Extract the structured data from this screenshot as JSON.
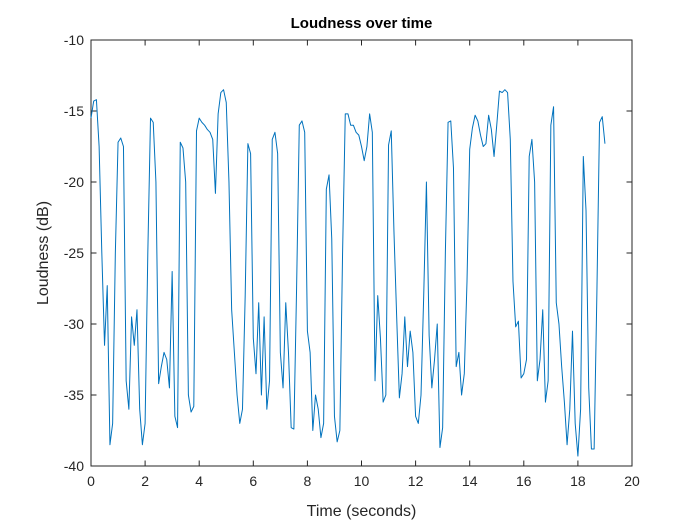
{
  "chart_data": {
    "type": "line",
    "title": "Loudness over time",
    "xlabel": "Time (seconds)",
    "ylabel": "Loudness (dB)",
    "xlim": [
      0,
      20
    ],
    "ylim": [
      -40,
      -10
    ],
    "xticks": [
      0,
      2,
      4,
      6,
      8,
      10,
      12,
      14,
      16,
      18,
      20
    ],
    "yticks": [
      -40,
      -35,
      -30,
      -25,
      -20,
      -15,
      -10
    ],
    "grid": false,
    "x": [
      0,
      0.1,
      0.2,
      0.3,
      0.4,
      0.5,
      0.6,
      0.7,
      0.8,
      0.9,
      1,
      1.1,
      1.2,
      1.3,
      1.4,
      1.5,
      1.6,
      1.7,
      1.8,
      1.9,
      2,
      2.1,
      2.2,
      2.3,
      2.4,
      2.5,
      2.6,
      2.7,
      2.8,
      2.9,
      3,
      3.1,
      3.2,
      3.3,
      3.4,
      3.5,
      3.6,
      3.7,
      3.8,
      3.9,
      4,
      4.1,
      4.2,
      4.3,
      4.4,
      4.5,
      4.6,
      4.7,
      4.8,
      4.9,
      5,
      5.1,
      5.2,
      5.3,
      5.4,
      5.5,
      5.6,
      5.7,
      5.8,
      5.9,
      6,
      6.1,
      6.2,
      6.3,
      6.4,
      6.5,
      6.6,
      6.7,
      6.8,
      6.9,
      7,
      7.1,
      7.2,
      7.3,
      7.4,
      7.5,
      7.6,
      7.7,
      7.8,
      7.9,
      8,
      8.1,
      8.2,
      8.3,
      8.4,
      8.5,
      8.6,
      8.7,
      8.8,
      8.9,
      9,
      9.1,
      9.2,
      9.3,
      9.4,
      9.5,
      9.6,
      9.7,
      9.8,
      9.9,
      10,
      10.1,
      10.2,
      10.3,
      10.4,
      10.5,
      10.6,
      10.7,
      10.8,
      10.9,
      11,
      11.1,
      11.2,
      11.3,
      11.4,
      11.5,
      11.6,
      11.7,
      11.8,
      11.9,
      12,
      12.1,
      12.2,
      12.3,
      12.4,
      12.5,
      12.6,
      12.7,
      12.8,
      12.9,
      13,
      13.1,
      13.2,
      13.3,
      13.4,
      13.5,
      13.6,
      13.7,
      13.8,
      13.9,
      14,
      14.1,
      14.2,
      14.3,
      14.4,
      14.5,
      14.6,
      14.7,
      14.8,
      14.9,
      15,
      15.1,
      15.2,
      15.3,
      15.4,
      15.5,
      15.6,
      15.7,
      15.8,
      15.9,
      16,
      16.1,
      16.2,
      16.3,
      16.4,
      16.5,
      16.6,
      16.7,
      16.8,
      16.9,
      17,
      17.1,
      17.2,
      17.3,
      17.4,
      17.5,
      17.6,
      17.7,
      17.8,
      17.9,
      18,
      18.1,
      18.2,
      18.3,
      18.4,
      18.5,
      18.6,
      18.7,
      18.8,
      18.9,
      19
    ],
    "series": [
      {
        "color": "#0072bd",
        "values": [
          -15.5,
          -14.3,
          -14.2,
          -17.5,
          -25,
          -31.5,
          -27.3,
          -38.5,
          -37,
          -25,
          -17.2,
          -16.9,
          -17.5,
          -34,
          -36,
          -29.5,
          -31.5,
          -29,
          -36,
          -38.5,
          -37,
          -25,
          -15.5,
          -15.8,
          -20,
          -34.2,
          -33,
          -32,
          -32.5,
          -34.5,
          -26.3,
          -36.5,
          -37.3,
          -17.2,
          -17.6,
          -20,
          -35,
          -36.2,
          -35.8,
          -16.4,
          -15.5,
          -15.8,
          -16,
          -16.3,
          -16.5,
          -17,
          -20.8,
          -15.2,
          -13.7,
          -13.5,
          -14.4,
          -20,
          -29,
          -32,
          -35,
          -37,
          -36,
          -28,
          -17.3,
          -18,
          -31,
          -33.5,
          -28.5,
          -35,
          -29.5,
          -36,
          -34,
          -17,
          -16.5,
          -18,
          -32,
          -34.5,
          -28.5,
          -32,
          -37.3,
          -37.4,
          -27.5,
          -16,
          -15.7,
          -16.5,
          -30.5,
          -32,
          -37.5,
          -35,
          -36,
          -38,
          -37,
          -20.5,
          -19.5,
          -24,
          -36.5,
          -38.3,
          -37.5,
          -25,
          -15.2,
          -15.2,
          -16,
          -16,
          -16.5,
          -16.7,
          -17.5,
          -18.5,
          -17.5,
          -15.2,
          -16.5,
          -34,
          -28,
          -31,
          -35.5,
          -35,
          -17.4,
          -16.4,
          -23.5,
          -29.5,
          -35.2,
          -33.5,
          -29.5,
          -33,
          -30.5,
          -32,
          -36.5,
          -37,
          -35,
          -28,
          -20,
          -30.8,
          -34.5,
          -32.5,
          -30,
          -38.7,
          -37.3,
          -25,
          -15.8,
          -15.7,
          -19,
          -33,
          -32,
          -35,
          -33.5,
          -27,
          -17.7,
          -16.2,
          -15.3,
          -15.7,
          -16.7,
          -17.5,
          -17.3,
          -15.3,
          -16.3,
          -18.2,
          -16,
          -13.6,
          -13.7,
          -13.5,
          -13.7,
          -17,
          -27,
          -30.2,
          -29.8,
          -33.8,
          -33.5,
          -32.5,
          -18.2,
          -17,
          -20,
          -34,
          -32.5,
          -29,
          -35.5,
          -34,
          -16,
          -14.7,
          -28.5,
          -30,
          -33,
          -35.5,
          -38.5,
          -36,
          -30.5,
          -37,
          -39.3,
          -36,
          -18.2,
          -22,
          -34.5,
          -38.8,
          -38.8,
          -28,
          -15.8,
          -15.4,
          -17.3
        ]
      }
    ]
  }
}
